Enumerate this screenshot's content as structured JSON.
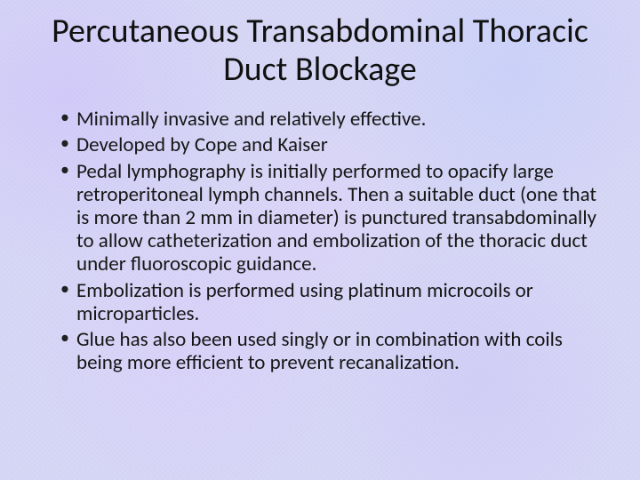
{
  "slide": {
    "background_color": "#d6d6f5",
    "text_color": "#1a1a1a",
    "title_fontsize": 38,
    "title_fontweight": 400,
    "body_fontsize": 23,
    "body_lineheight": 1.14,
    "font_family": "Calibri",
    "title": "Percutaneous Transabdominal Thoracic Duct Blockage",
    "bullets": [
      "Minimally invasive and relatively effective.",
      "Developed by Cope and Kaiser",
      "Pedal lymphography is initially performed to opacify large retroperitoneal lymph channels. Then a suitable duct (one that is more than 2 mm in diameter) is punctured transabdominally to allow catheterization and embolization of the thoracic duct under fluoroscopic guidance.",
      "Embolization is performed using platinum microcoils or microparticles.",
      "Glue has also been used singly or in combination with coils being more efficient to prevent recanalization."
    ]
  }
}
